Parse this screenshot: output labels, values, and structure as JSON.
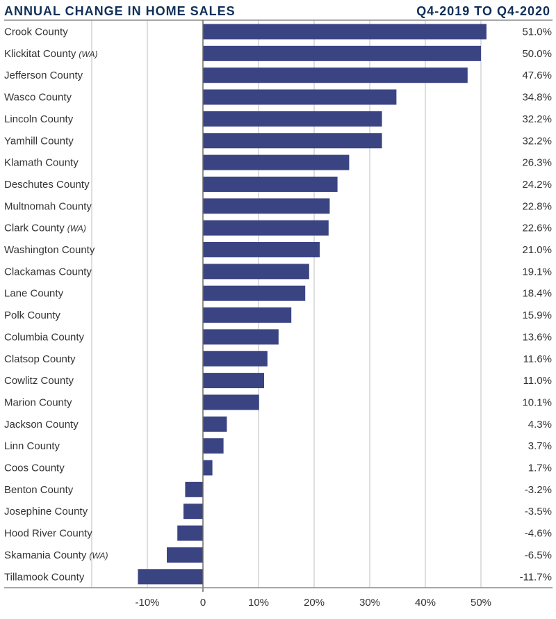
{
  "chart_data": {
    "type": "bar",
    "orientation": "horizontal",
    "title": "ANNUAL CHANGE IN HOME SALES",
    "subtitle": "Q4-2019 TO Q4-2020",
    "xlabel": "",
    "ylabel": "",
    "xlim": [
      -20,
      60
    ],
    "grid": true,
    "bar_color": "#3b4482",
    "categories": [
      {
        "name": "Crook County",
        "tag": ""
      },
      {
        "name": "Klickitat County",
        "tag": "(WA)"
      },
      {
        "name": "Jefferson County",
        "tag": ""
      },
      {
        "name": "Wasco County",
        "tag": ""
      },
      {
        "name": "Lincoln County",
        "tag": ""
      },
      {
        "name": "Yamhill County",
        "tag": ""
      },
      {
        "name": "Klamath County",
        "tag": ""
      },
      {
        "name": "Deschutes County",
        "tag": ""
      },
      {
        "name": "Multnomah County",
        "tag": ""
      },
      {
        "name": "Clark County",
        "tag": "(WA)"
      },
      {
        "name": "Washington County",
        "tag": ""
      },
      {
        "name": "Clackamas County",
        "tag": ""
      },
      {
        "name": "Lane County",
        "tag": ""
      },
      {
        "name": "Polk County",
        "tag": ""
      },
      {
        "name": "Columbia County",
        "tag": ""
      },
      {
        "name": "Clatsop County",
        "tag": ""
      },
      {
        "name": "Cowlitz County",
        "tag": ""
      },
      {
        "name": "Marion County",
        "tag": ""
      },
      {
        "name": "Jackson County",
        "tag": ""
      },
      {
        "name": "Linn County",
        "tag": ""
      },
      {
        "name": "Coos County",
        "tag": ""
      },
      {
        "name": "Benton County",
        "tag": ""
      },
      {
        "name": "Josephine County",
        "tag": ""
      },
      {
        "name": "Hood River County",
        "tag": ""
      },
      {
        "name": "Skamania County",
        "tag": "(WA)"
      },
      {
        "name": "Tillamook County",
        "tag": ""
      }
    ],
    "values": [
      51.0,
      50.0,
      47.6,
      34.8,
      32.2,
      32.2,
      26.3,
      24.2,
      22.8,
      22.6,
      21.0,
      19.1,
      18.4,
      15.9,
      13.6,
      11.6,
      11.0,
      10.1,
      4.3,
      3.7,
      1.7,
      -3.2,
      -3.5,
      -4.6,
      -6.5,
      -11.7
    ],
    "value_labels": [
      "51.0%",
      "50.0%",
      "47.6%",
      "34.8%",
      "32.2%",
      "32.2%",
      "26.3%",
      "24.2%",
      "22.8%",
      "22.6%",
      "21.0%",
      "19.1%",
      "18.4%",
      "15.9%",
      "13.6%",
      "11.6%",
      "11.0%",
      "10.1%",
      "4.3%",
      "3.7%",
      "1.7%",
      "-3.2%",
      "-3.5%",
      "-4.6%",
      "-6.5%",
      "-11.7%"
    ],
    "ticks": [
      {
        "value": -20,
        "label": ""
      },
      {
        "value": -10,
        "label": "-10%"
      },
      {
        "value": 0,
        "label": "0"
      },
      {
        "value": 10,
        "label": "10%"
      },
      {
        "value": 20,
        "label": "20%"
      },
      {
        "value": 30,
        "label": "30%"
      },
      {
        "value": 40,
        "label": "40%"
      },
      {
        "value": 50,
        "label": "50%"
      }
    ]
  }
}
